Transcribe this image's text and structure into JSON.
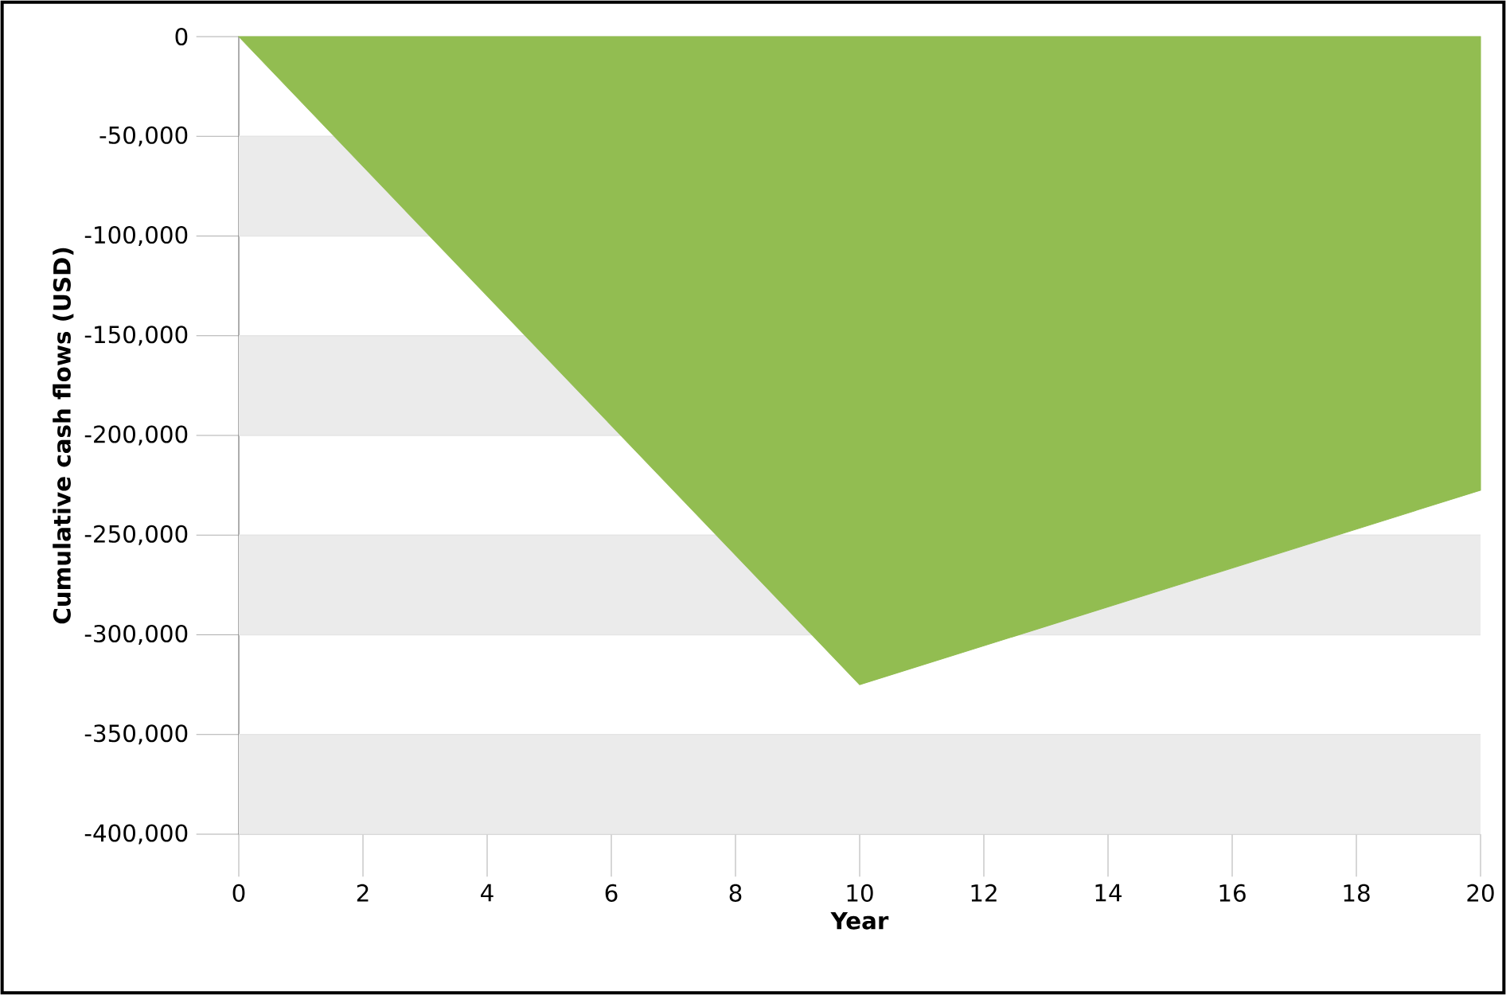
{
  "chart_data": {
    "type": "area",
    "xlabel": "Year",
    "ylabel": "Cumulative cash flows (USD)",
    "x": [
      0,
      10,
      20
    ],
    "values": [
      0,
      -325000,
      -227500
    ],
    "color": "#92bd51",
    "xlim": [
      0,
      20
    ],
    "xticks": [
      0,
      2,
      4,
      6,
      8,
      10,
      12,
      14,
      16,
      18,
      20
    ],
    "ylim": [
      -400000,
      0
    ],
    "yticks": [
      {
        "value": -400000,
        "label": "-400,000"
      },
      {
        "value": -350000,
        "label": "-350,000"
      },
      {
        "value": -300000,
        "label": "-300,000"
      },
      {
        "value": -250000,
        "label": "-250,000"
      },
      {
        "value": -200000,
        "label": "-200,000"
      },
      {
        "value": -150000,
        "label": "-150,000"
      },
      {
        "value": -100000,
        "label": "-100,000"
      },
      {
        "value": -50000,
        "label": "-50,000"
      },
      0
    ],
    "grid": "y"
  }
}
